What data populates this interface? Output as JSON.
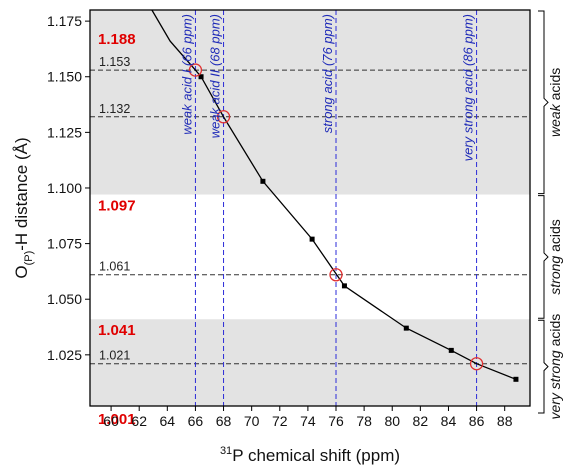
{
  "chart_data": {
    "type": "line",
    "title": "",
    "xlabel_sup": "31",
    "xlabel_main": "P chemical shift (ppm)",
    "ylabel_main": "O",
    "ylabel_sub": "(P)",
    "ylabel_rest": "-H distance (Å)",
    "xlim": [
      58.5,
      89.8
    ],
    "ylim": [
      1.002,
      1.18
    ],
    "x_ticks": [
      "60",
      "62",
      "64",
      "66",
      "68",
      "70",
      "72",
      "74",
      "76",
      "78",
      "80",
      "82",
      "84",
      "86",
      "88"
    ],
    "y_ticks": [
      "1.025",
      "1.050",
      "1.075",
      "1.100",
      "1.125",
      "1.150",
      "1.175"
    ],
    "series": [
      {
        "points": [
          {
            "x": 62.9,
            "y": 1.18
          },
          {
            "x": 64.2,
            "y": 1.166
          },
          {
            "x": 66.0,
            "y": 1.153
          },
          {
            "x": 66.4,
            "y": 1.15
          },
          {
            "x": 68.0,
            "y": 1.132
          },
          {
            "x": 70.8,
            "y": 1.103
          },
          {
            "x": 74.3,
            "y": 1.077
          },
          {
            "x": 76.6,
            "y": 1.056
          },
          {
            "x": 81.0,
            "y": 1.037
          },
          {
            "x": 84.2,
            "y": 1.027
          },
          {
            "x": 86.0,
            "y": 1.021
          },
          {
            "x": 88.8,
            "y": 1.014
          }
        ],
        "markers": [
          {
            "x": 66.4,
            "y": 1.15
          },
          {
            "x": 70.8,
            "y": 1.103
          },
          {
            "x": 74.3,
            "y": 1.077
          },
          {
            "x": 76.6,
            "y": 1.056
          },
          {
            "x": 81.0,
            "y": 1.037
          },
          {
            "x": 84.2,
            "y": 1.027
          },
          {
            "x": 88.8,
            "y": 1.014
          }
        ]
      }
    ],
    "highlight_points": [
      {
        "x": 66,
        "y": 1.153
      },
      {
        "x": 68,
        "y": 1.132
      },
      {
        "x": 76,
        "y": 1.061
      },
      {
        "x": 86,
        "y": 1.021
      }
    ],
    "bands": [
      {
        "from": 1.097,
        "to": 1.18,
        "color": "#e3e3e3"
      },
      {
        "from": 1.041,
        "to": 1.097,
        "color": "#ffffff"
      },
      {
        "from": 1.002,
        "to": 1.041,
        "color": "#e3e3e3"
      }
    ],
    "h_lines": [
      {
        "y": 1.153,
        "label": "1.153"
      },
      {
        "y": 1.132,
        "label": "1.132"
      },
      {
        "y": 1.061,
        "label": "1.061"
      },
      {
        "y": 1.021,
        "label": "1.021"
      }
    ],
    "boundary_labels": [
      {
        "y": 1.172,
        "label": "1.188"
      },
      {
        "y": 1.097,
        "label": "1.097"
      },
      {
        "y": 1.041,
        "label": "1.041"
      },
      {
        "y": 1.001,
        "label": "1.001"
      }
    ],
    "v_lines": [
      {
        "x": 66,
        "label": "weak acid I (66 ppm)"
      },
      {
        "x": 68,
        "label": "weak acid II (68 ppm)"
      },
      {
        "x": 76,
        "label": "strong acid (76 ppm)"
      },
      {
        "x": 86,
        "label": "very strong acid (86 ppm)"
      }
    ],
    "regions": [
      {
        "from": 1.097,
        "to": 1.18,
        "italic": "weak",
        "rest": " acids"
      },
      {
        "from": 1.041,
        "to": 1.097,
        "italic": "strong",
        "rest": " acids"
      },
      {
        "from": 0.995,
        "to": 1.041,
        "italic": "very strong",
        "rest": " acids"
      }
    ],
    "colors": {
      "band": "#e3e3e3",
      "vline": "#2b2bd8",
      "vlabel": "#1f2bb8",
      "hline": "#555555",
      "boundary_label": "#e00000",
      "marker_ring": "#e03030",
      "curve": "#000000"
    },
    "grid": false,
    "legend": "none"
  }
}
